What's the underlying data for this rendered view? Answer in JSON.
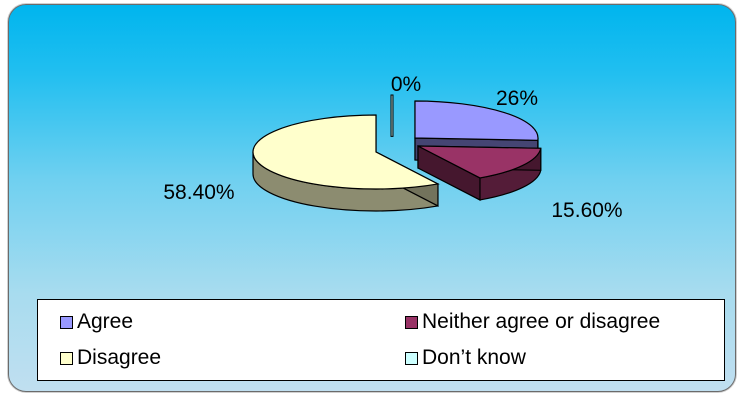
{
  "chart_data": {
    "type": "pie",
    "style": "3d-exploded",
    "slices": [
      {
        "label": "Agree",
        "value": 26,
        "display": "26%",
        "color": "#9999ff"
      },
      {
        "label": "Neither agree or disagree",
        "value": 15.6,
        "display": "15.60%",
        "color": "#993366"
      },
      {
        "label": "Disagree",
        "value": 58.4,
        "display": "58.40%",
        "color": "#ffffcc"
      },
      {
        "label": "Don’t know",
        "value": 0,
        "display": "0%",
        "color": "#ccffff"
      }
    ],
    "legend_position": "bottom"
  }
}
